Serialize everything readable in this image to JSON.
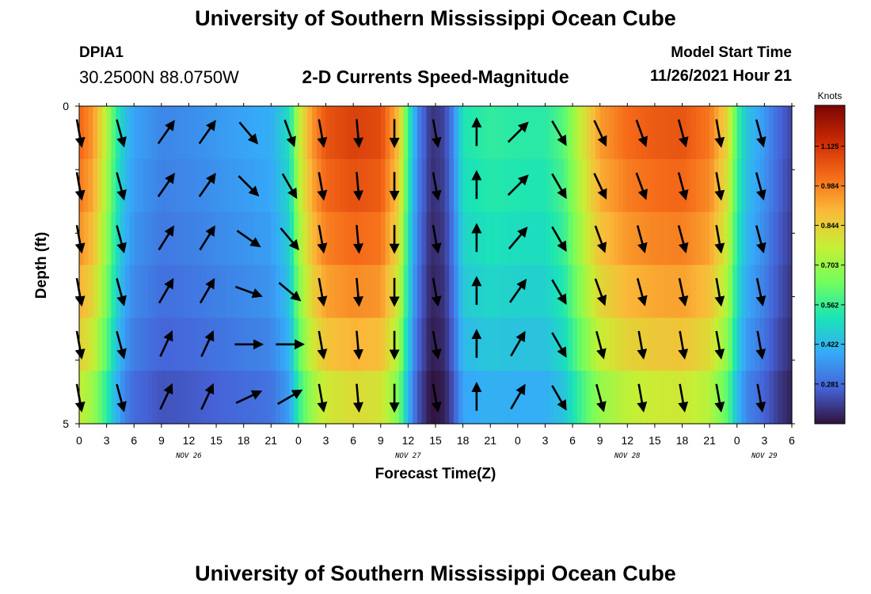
{
  "header": {
    "title": "University of Southern Mississippi Ocean Cube",
    "station": "DPIA1",
    "coords": "30.2500N  88.0750W",
    "subtitle": "2-D Currents Speed-Magnitude",
    "model_start_label": "Model Start Time",
    "model_start_value": "11/26/2021 Hour 21"
  },
  "footer": {
    "title": "University of Southern Mississippi Ocean Cube"
  },
  "chart_data": {
    "type": "heatmap",
    "xlabel": "Forecast Time(Z)",
    "ylabel": "Depth (ft)",
    "y_ticks": [
      "0",
      "5"
    ],
    "y_range": [
      0,
      5
    ],
    "x_tick_labels": [
      "0",
      "3",
      "6",
      "9",
      "12",
      "15",
      "18",
      "21",
      "0",
      "3",
      "6",
      "9",
      "12",
      "15",
      "18",
      "21",
      "0",
      "3",
      "6",
      "9",
      "12",
      "15",
      "18",
      "21",
      "0",
      "3",
      "6"
    ],
    "x_range_hours": [
      0,
      78
    ],
    "day_labels": [
      {
        "label": "NOV 26",
        "hour": 12
      },
      {
        "label": "NOV 27",
        "hour": 36
      },
      {
        "label": "NOV 28",
        "hour": 60
      },
      {
        "label": "NOV 29",
        "hour": 75
      }
    ],
    "colorbar": {
      "unit": "Knots",
      "range": [
        0.14,
        1.27
      ],
      "ticks": [
        "1.125",
        "0.984",
        "0.844",
        "0.703",
        "0.562",
        "0.422",
        "0.281"
      ],
      "tick_values": [
        1.125,
        0.984,
        0.844,
        0.703,
        0.562,
        0.422,
        0.281
      ],
      "colors": [
        "#30123b",
        "#4662d7",
        "#36aaf9",
        "#1ae4b6",
        "#72fe5e",
        "#c7ef34",
        "#faba39",
        "#f66b19",
        "#ca2a04",
        "#7a0403"
      ]
    },
    "depth_levels": 6,
    "speed_profile": [
      {
        "hour": 0,
        "speed": 1.03
      },
      {
        "hour": 1.5,
        "speed": 0.95
      },
      {
        "hour": 3,
        "speed": 0.74
      },
      {
        "hour": 4,
        "speed": 0.56
      },
      {
        "hour": 5,
        "speed": 0.44
      },
      {
        "hour": 6,
        "speed": 0.38
      },
      {
        "hour": 9,
        "speed": 0.33
      },
      {
        "hour": 12,
        "speed": 0.34
      },
      {
        "hour": 15,
        "speed": 0.36
      },
      {
        "hour": 18,
        "speed": 0.38
      },
      {
        "hour": 21,
        "speed": 0.4
      },
      {
        "hour": 23,
        "speed": 0.5
      },
      {
        "hour": 24,
        "speed": 0.75
      },
      {
        "hour": 25.5,
        "speed": 0.95
      },
      {
        "hour": 27,
        "speed": 1.06
      },
      {
        "hour": 30,
        "speed": 1.1
      },
      {
        "hour": 33,
        "speed": 1.08
      },
      {
        "hour": 35,
        "speed": 0.88
      },
      {
        "hour": 36,
        "speed": 0.56
      },
      {
        "hour": 37,
        "speed": 0.34
      },
      {
        "hour": 38.5,
        "speed": 0.19
      },
      {
        "hour": 40,
        "speed": 0.22
      },
      {
        "hour": 41,
        "speed": 0.34
      },
      {
        "hour": 42,
        "speed": 0.52
      },
      {
        "hour": 45,
        "speed": 0.55
      },
      {
        "hour": 48,
        "speed": 0.54
      },
      {
        "hour": 51,
        "speed": 0.54
      },
      {
        "hour": 53,
        "speed": 0.6
      },
      {
        "hour": 55,
        "speed": 0.78
      },
      {
        "hour": 57,
        "speed": 0.94
      },
      {
        "hour": 60,
        "speed": 1.02
      },
      {
        "hour": 63,
        "speed": 1.05
      },
      {
        "hour": 66,
        "speed": 1.06
      },
      {
        "hour": 69,
        "speed": 1.0
      },
      {
        "hour": 71,
        "speed": 0.82
      },
      {
        "hour": 72,
        "speed": 0.58
      },
      {
        "hour": 73,
        "speed": 0.45
      },
      {
        "hour": 75,
        "speed": 0.36
      },
      {
        "hour": 76.5,
        "speed": 0.28
      },
      {
        "hour": 78,
        "speed": 0.22
      }
    ],
    "depth_factors": [
      1.0,
      0.97,
      0.93,
      0.88,
      0.82,
      0.74
    ],
    "vectors": [
      {
        "hour": 0,
        "angle": [
          170,
          170,
          170,
          170,
          170,
          170
        ]
      },
      {
        "hour": 4.5,
        "angle": [
          165,
          165,
          165,
          165,
          165,
          165
        ]
      },
      {
        "hour": 9.5,
        "angle": [
          35,
          35,
          32,
          30,
          25,
          25
        ]
      },
      {
        "hour": 14,
        "angle": [
          35,
          35,
          32,
          30,
          25,
          25
        ]
      },
      {
        "hour": 18.5,
        "angle": [
          140,
          135,
          125,
          110,
          90,
          65
        ]
      },
      {
        "hour": 23,
        "angle": [
          160,
          150,
          140,
          130,
          90,
          60
        ]
      },
      {
        "hour": 26.5,
        "angle": [
          170,
          170,
          170,
          170,
          170,
          170
        ]
      },
      {
        "hour": 30.5,
        "angle": [
          175,
          175,
          175,
          175,
          175,
          175
        ]
      },
      {
        "hour": 34.5,
        "angle": [
          180,
          180,
          180,
          180,
          180,
          180
        ]
      },
      {
        "hour": 39,
        "angle": [
          170,
          170,
          170,
          170,
          170,
          170
        ]
      },
      {
        "hour": 43.5,
        "angle": [
          0,
          0,
          0,
          0,
          0,
          0
        ]
      },
      {
        "hour": 48,
        "angle": [
          45,
          45,
          40,
          35,
          30,
          30
        ]
      },
      {
        "hour": 52.5,
        "angle": [
          150,
          150,
          150,
          150,
          150,
          150
        ]
      },
      {
        "hour": 57,
        "angle": [
          155,
          155,
          160,
          160,
          165,
          165
        ]
      },
      {
        "hour": 61.5,
        "angle": [
          160,
          160,
          165,
          165,
          170,
          170
        ]
      },
      {
        "hour": 66,
        "angle": [
          165,
          165,
          165,
          168,
          170,
          170
        ]
      },
      {
        "hour": 70,
        "angle": [
          170,
          170,
          170,
          170,
          170,
          170
        ]
      },
      {
        "hour": 74.5,
        "angle": [
          165,
          165,
          165,
          168,
          170,
          170
        ]
      }
    ]
  }
}
